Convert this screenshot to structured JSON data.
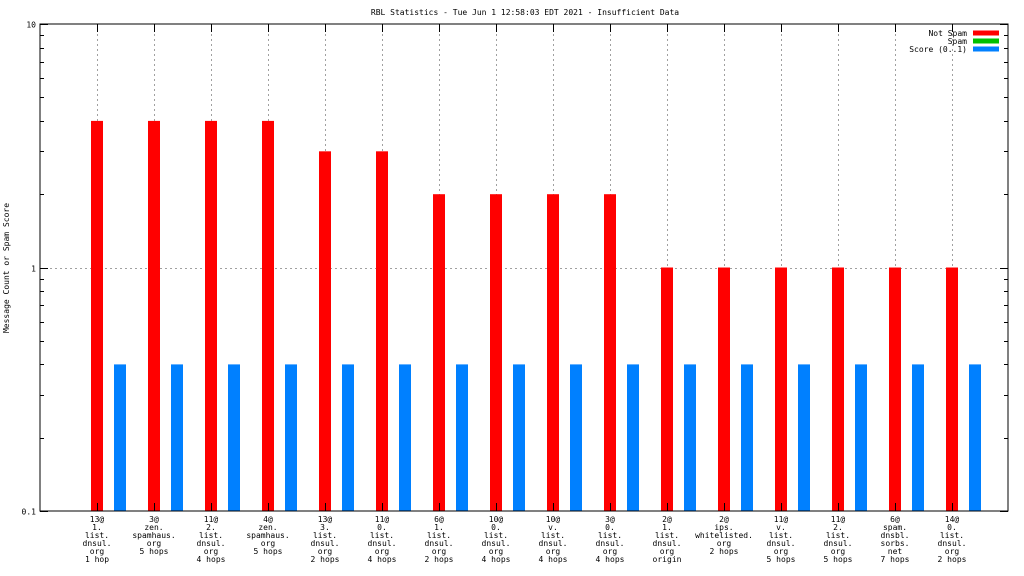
{
  "chart_data": {
    "type": "bar",
    "title": "RBL Statistics - Tue Jun  1 12:58:03 EDT 2021 - Insufficient Data",
    "xlabel": "",
    "ylabel": "Message Count or Spam Score",
    "yscale": "log",
    "ylim": [
      0.1,
      10
    ],
    "yticks": [
      {
        "value": 0.1,
        "label": "0.1"
      },
      {
        "value": 1,
        "label": "1"
      },
      {
        "value": 10,
        "label": "10"
      }
    ],
    "grid": true,
    "legend_position": "top-right",
    "categories": [
      [
        "13@",
        "1.",
        "list.",
        "dnsul.",
        "org",
        "1 hop"
      ],
      [
        "3@",
        "zen.",
        "spamhaus.",
        "org",
        "5 hops"
      ],
      [
        "11@",
        "2.",
        "list.",
        "dnsul.",
        "org",
        "4 hops"
      ],
      [
        "4@",
        "zen.",
        "spamhaus.",
        "org",
        "5 hops"
      ],
      [
        "13@",
        "3.",
        "list.",
        "dnsul.",
        "org",
        "2 hops"
      ],
      [
        "11@",
        "0.",
        "list.",
        "dnsul.",
        "org",
        "4 hops"
      ],
      [
        "6@",
        "1.",
        "list.",
        "dnsul.",
        "org",
        "2 hops"
      ],
      [
        "10@",
        "0.",
        "list.",
        "dnsul.",
        "org",
        "4 hops"
      ],
      [
        "10@",
        "v.",
        "list.",
        "dnsul.",
        "org",
        "4 hops"
      ],
      [
        "3@",
        "0.",
        "list.",
        "dnsul.",
        "org",
        "4 hops"
      ],
      [
        "2@",
        "1.",
        "list.",
        "dnsul.",
        "org",
        "origin"
      ],
      [
        "2@",
        "ips.",
        "whitelisted.",
        "org",
        "2 hops"
      ],
      [
        "11@",
        "v.",
        "list.",
        "dnsul.",
        "org",
        "5 hops"
      ],
      [
        "11@",
        "2.",
        "list.",
        "dnsul.",
        "org",
        "5 hops"
      ],
      [
        "6@",
        "spam.",
        "dnsbl.",
        "sorbs.",
        "net",
        "7 hops"
      ],
      [
        "14@",
        "0.",
        "list.",
        "dnsul.",
        "org",
        "2 hops"
      ]
    ],
    "series": [
      {
        "name": "Not Spam",
        "color": "#ff0000",
        "values": [
          4,
          4,
          4,
          4,
          3,
          3,
          2,
          2,
          2,
          2,
          1,
          1,
          1,
          1,
          1,
          1
        ]
      },
      {
        "name": "Spam",
        "color": "#00c000",
        "values": [
          0,
          0,
          0,
          0,
          0,
          0,
          0,
          0,
          0,
          0,
          0,
          0,
          0,
          0,
          0,
          0
        ]
      },
      {
        "name": "Score (0..1)",
        "color": "#0080ff",
        "values": [
          0.4,
          0.4,
          0.4,
          0.4,
          0.4,
          0.4,
          0.4,
          0.4,
          0.4,
          0.4,
          0.4,
          0.4,
          0.4,
          0.4,
          0.4,
          0.4
        ]
      }
    ]
  }
}
